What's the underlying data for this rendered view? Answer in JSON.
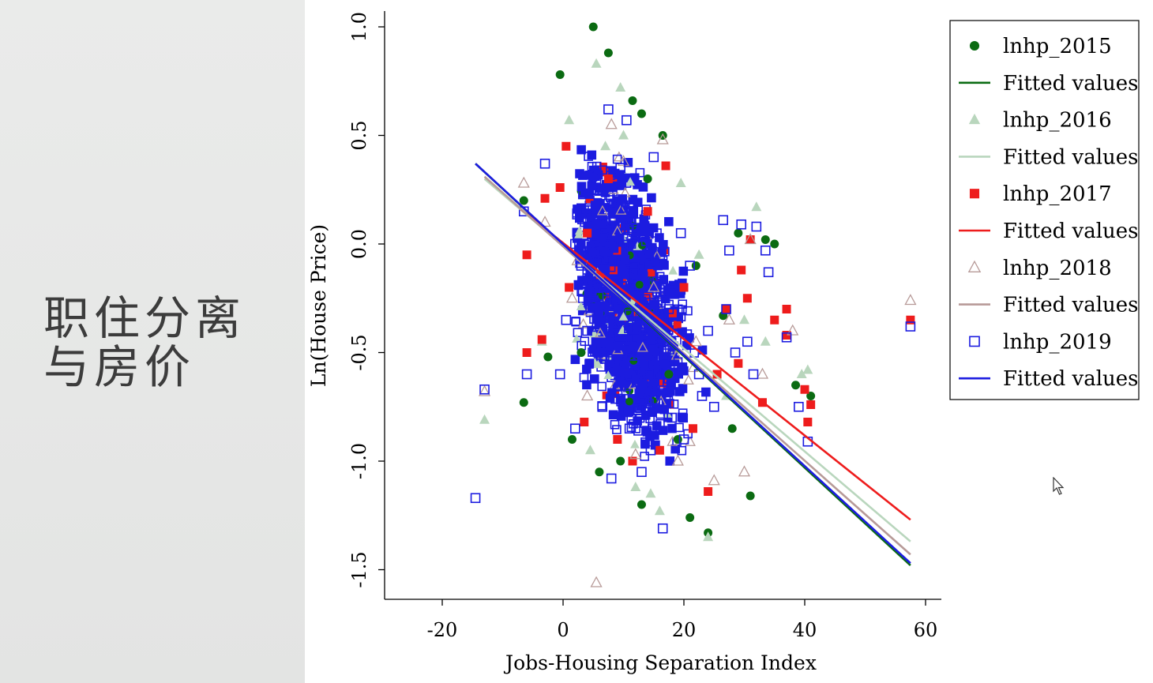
{
  "slide": {
    "title_line1": "职住分离",
    "title_line2": "与房价"
  },
  "colors": {
    "y2015": "#0b6b12",
    "y2016": "#b9d6bd",
    "y2017": "#ee1c1c",
    "y2018": "#b79a98",
    "y2019": "#1c1ce0",
    "axis": "#000000",
    "left_panel": "#e7e8e7"
  },
  "chart_data": {
    "type": "scatter",
    "title": "",
    "xlabel": "Jobs-Housing Separation Index",
    "ylabel": "Ln(House Price)",
    "xlim": [
      -30,
      62
    ],
    "ylim": [
      -1.62,
      1.07
    ],
    "x_ticks": [
      -20,
      0,
      20,
      40,
      60
    ],
    "x_tick_labels": [
      "-20",
      "0",
      "20",
      "40",
      "60"
    ],
    "y_ticks": [
      -1.5,
      -1.0,
      -0.5,
      0.0,
      0.5,
      1.0
    ],
    "y_tick_labels": [
      "-1.5",
      "-1.0",
      "-0.5",
      "0.0",
      "0.5",
      "1.0"
    ],
    "grid": false,
    "legend_position": "top-right",
    "legend": [
      {
        "label": "lnhp_2015",
        "kind": "marker",
        "marker": "circle",
        "series": "lnhp_2015"
      },
      {
        "label": "Fitted values",
        "kind": "line",
        "series": "fit_2015"
      },
      {
        "label": "lnhp_2016",
        "kind": "marker",
        "marker": "triangle-filled",
        "series": "lnhp_2016"
      },
      {
        "label": "Fitted values",
        "kind": "line",
        "series": "fit_2016"
      },
      {
        "label": "lnhp_2017",
        "kind": "marker",
        "marker": "square-filled",
        "series": "lnhp_2017"
      },
      {
        "label": "Fitted values",
        "kind": "line",
        "series": "fit_2017"
      },
      {
        "label": "lnhp_2018",
        "kind": "marker",
        "marker": "triangle-open",
        "series": "lnhp_2018"
      },
      {
        "label": "Fitted values",
        "kind": "line",
        "series": "fit_2018"
      },
      {
        "label": "lnhp_2019",
        "kind": "marker",
        "marker": "square-open",
        "series": "lnhp_2019"
      },
      {
        "label": "Fitted values",
        "kind": "line",
        "series": "fit_2019"
      }
    ],
    "fitted_lines": [
      {
        "series": "fit_2015",
        "color": "#0b6b12",
        "x": [
          -14.5,
          57.5
        ],
        "y": [
          0.37,
          -1.48
        ]
      },
      {
        "series": "fit_2016",
        "color": "#b9d6bd",
        "x": [
          -13.0,
          57.5
        ],
        "y": [
          0.3,
          -1.37
        ]
      },
      {
        "series": "fit_2017",
        "color": "#ee1c1c",
        "x": [
          -7.0,
          57.5
        ],
        "y": [
          0.16,
          -1.27
        ]
      },
      {
        "series": "fit_2018",
        "color": "#b79a98",
        "x": [
          -13.0,
          57.5
        ],
        "y": [
          0.31,
          -1.43
        ]
      },
      {
        "series": "fit_2019",
        "color": "#1c1ce0",
        "x": [
          -14.5,
          57.5
        ],
        "y": [
          0.37,
          -1.47
        ]
      }
    ],
    "series": [
      {
        "name": "lnhp_2015",
        "marker": "circle",
        "color": "#0b6b12",
        "points": [
          [
            5.0,
            1.0
          ],
          [
            7.5,
            0.88
          ],
          [
            -0.5,
            0.78
          ],
          [
            11.5,
            0.66
          ],
          [
            13.0,
            0.6
          ],
          [
            16.5,
            0.5
          ],
          [
            -6.5,
            0.2
          ],
          [
            -6.5,
            -0.73
          ],
          [
            24.0,
            -1.33
          ],
          [
            31.0,
            -1.16
          ],
          [
            21.0,
            -1.26
          ],
          [
            33.5,
            0.02
          ],
          [
            35.0,
            0.0
          ],
          [
            38.5,
            -0.65
          ],
          [
            41.0,
            -0.7
          ],
          [
            9.5,
            -1.0
          ],
          [
            13.0,
            -1.2
          ],
          [
            1.5,
            -0.9
          ],
          [
            6.0,
            -1.05
          ],
          [
            19.0,
            -0.9
          ],
          [
            28.0,
            -0.85
          ],
          [
            -2.5,
            -0.52
          ],
          [
            3.0,
            -0.5
          ],
          [
            14.0,
            0.3
          ],
          [
            22.0,
            -0.1
          ],
          [
            17.5,
            -0.6
          ],
          [
            26.5,
            -0.33
          ],
          [
            29.0,
            0.05
          ]
        ]
      },
      {
        "name": "lnhp_2016",
        "marker": "triangle-filled",
        "color": "#b9d6bd",
        "points": [
          [
            5.5,
            0.83
          ],
          [
            1.0,
            0.57
          ],
          [
            9.5,
            0.72
          ],
          [
            -13.0,
            -0.81
          ],
          [
            16.0,
            -1.23
          ],
          [
            24.0,
            -1.35
          ],
          [
            32.0,
            0.17
          ],
          [
            40.5,
            -0.58
          ],
          [
            39.5,
            -0.6
          ],
          [
            7.0,
            0.45
          ],
          [
            12.0,
            -1.12
          ],
          [
            19.5,
            0.28
          ],
          [
            33.5,
            -0.45
          ],
          [
            27.0,
            -0.7
          ],
          [
            14.5,
            -1.15
          ],
          [
            -3.5,
            -0.45
          ],
          [
            4.5,
            -0.95
          ],
          [
            22.5,
            -0.05
          ],
          [
            10.0,
            0.5
          ],
          [
            30.0,
            -0.35
          ]
        ]
      },
      {
        "name": "lnhp_2017",
        "marker": "square-filled",
        "color": "#ee1c1c",
        "points": [
          [
            0.5,
            0.45
          ],
          [
            -3.0,
            0.21
          ],
          [
            -6.0,
            -0.05
          ],
          [
            -6.0,
            -0.5
          ],
          [
            -0.5,
            0.26
          ],
          [
            -3.5,
            -0.44
          ],
          [
            24.0,
            -1.14
          ],
          [
            35.0,
            -0.35
          ],
          [
            37.0,
            -0.3
          ],
          [
            37.0,
            -0.42
          ],
          [
            40.0,
            -0.67
          ],
          [
            40.5,
            -0.82
          ],
          [
            41.0,
            -0.74
          ],
          [
            33.0,
            -0.73
          ],
          [
            31.0,
            0.02
          ],
          [
            29.5,
            -0.12
          ],
          [
            57.5,
            -0.35
          ],
          [
            11.5,
            -1.0
          ],
          [
            16.0,
            -0.95
          ],
          [
            3.5,
            -0.82
          ],
          [
            7.5,
            0.3
          ],
          [
            17.0,
            0.36
          ],
          [
            27.0,
            -0.3
          ],
          [
            29.0,
            -0.55
          ],
          [
            30.5,
            -0.25
          ],
          [
            25.5,
            -0.6
          ],
          [
            20.0,
            -0.2
          ],
          [
            9.0,
            -0.9
          ],
          [
            14.0,
            0.15
          ],
          [
            1.0,
            -0.2
          ],
          [
            4.0,
            0.05
          ],
          [
            21.5,
            -0.85
          ]
        ]
      },
      {
        "name": "lnhp_2018",
        "marker": "triangle-open",
        "color": "#b79a98",
        "points": [
          [
            5.5,
            -1.56
          ],
          [
            -6.5,
            0.28
          ],
          [
            57.5,
            -0.26
          ],
          [
            30.0,
            -1.05
          ],
          [
            25.0,
            -1.09
          ],
          [
            16.5,
            0.48
          ],
          [
            -3.0,
            0.1
          ],
          [
            -13.0,
            -0.68
          ],
          [
            38.0,
            -0.4
          ],
          [
            4.0,
            -0.7
          ],
          [
            8.0,
            0.55
          ],
          [
            19.0,
            -1.0
          ],
          [
            27.5,
            -0.35
          ],
          [
            31.0,
            0.02
          ],
          [
            12.0,
            -0.97
          ],
          [
            22.0,
            -0.45
          ],
          [
            1.5,
            -0.25
          ],
          [
            33.0,
            -0.6
          ],
          [
            10.0,
            0.38
          ],
          [
            15.0,
            -0.2
          ]
        ]
      },
      {
        "name": "lnhp_2019",
        "marker": "square-open",
        "color": "#1c1ce0",
        "points": [
          [
            -14.5,
            -1.17
          ],
          [
            -13.0,
            -0.67
          ],
          [
            -6.0,
            -0.6
          ],
          [
            -6.5,
            0.15
          ],
          [
            -3.0,
            0.37
          ],
          [
            7.5,
            0.62
          ],
          [
            10.5,
            0.57
          ],
          [
            16.5,
            -1.31
          ],
          [
            26.5,
            0.11
          ],
          [
            27.5,
            -0.03
          ],
          [
            29.5,
            0.09
          ],
          [
            32.0,
            0.08
          ],
          [
            33.5,
            -0.03
          ],
          [
            34.0,
            -0.13
          ],
          [
            37.0,
            -0.43
          ],
          [
            39.0,
            -0.75
          ],
          [
            40.5,
            -0.91
          ],
          [
            57.5,
            -0.38
          ],
          [
            2.0,
            0.0
          ],
          [
            5.5,
            0.3
          ],
          [
            9.5,
            0.35
          ],
          [
            18.0,
            -0.8
          ],
          [
            20.0,
            -0.9
          ],
          [
            22.5,
            -0.6
          ],
          [
            24.0,
            -0.4
          ],
          [
            25.0,
            -0.75
          ],
          [
            28.5,
            -0.5
          ],
          [
            30.5,
            -0.45
          ],
          [
            13.0,
            -1.05
          ],
          [
            8.0,
            -1.08
          ],
          [
            4.0,
            -0.4
          ],
          [
            2.0,
            -0.85
          ],
          [
            -0.5,
            -0.6
          ],
          [
            0.5,
            -0.35
          ],
          [
            15.0,
            0.4
          ],
          [
            12.0,
            0.1
          ],
          [
            17.5,
            -0.3
          ],
          [
            21.0,
            -0.1
          ],
          [
            19.5,
            0.05
          ],
          [
            23.0,
            -0.7
          ],
          [
            11.0,
            -0.85
          ],
          [
            14.5,
            -0.95
          ],
          [
            6.5,
            -0.75
          ],
          [
            3.0,
            -0.1
          ],
          [
            27.0,
            -0.3
          ],
          [
            31.5,
            -0.6
          ]
        ]
      }
    ],
    "dense_cluster": {
      "series": "lnhp_2019",
      "color": "#1c1ce0",
      "center_x": 10.5,
      "center_y": -0.25,
      "x_range": [
        2,
        26
      ],
      "y_range": [
        -1.02,
        0.45
      ],
      "tilt": -0.032
    }
  }
}
